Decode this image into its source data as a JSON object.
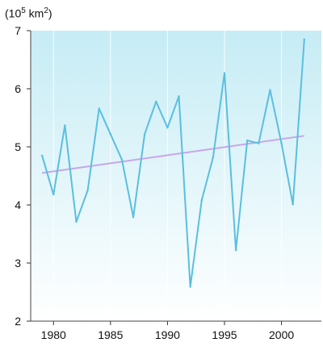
{
  "chart_data": {
    "type": "line",
    "title": "",
    "ylabel_parts": {
      "prefix": "(10",
      "exp": "5",
      "unit": " km",
      "unit_exp": "2",
      "suffix": ")"
    },
    "xlabel": "",
    "x": [
      1979,
      1980,
      1981,
      1982,
      1983,
      1984,
      1985,
      1986,
      1987,
      1988,
      1989,
      1990,
      1991,
      1992,
      1993,
      1994,
      1995,
      1996,
      1997,
      1998,
      1999,
      2000,
      2001,
      2002
    ],
    "series": [
      {
        "values": [
          4.85,
          4.18,
          5.37,
          3.71,
          4.25,
          5.66,
          5.22,
          4.78,
          3.79,
          5.22,
          5.78,
          5.33,
          5.87,
          2.59,
          4.08,
          4.82,
          6.27,
          3.22,
          5.11,
          5.06,
          5.98,
          5.06,
          4.01,
          6.85
        ],
        "color": "#59bfe0"
      }
    ],
    "trend": {
      "x": [
        1979,
        2002
      ],
      "y": [
        4.55,
        5.19
      ],
      "color": "#c7a6ea"
    },
    "xlim": [
      1978,
      2003.5
    ],
    "ylim": [
      2,
      7
    ],
    "xticks": [
      1980,
      1985,
      1990,
      1995,
      2000
    ],
    "yticks": [
      2,
      3,
      4,
      5,
      6,
      7
    ],
    "grid": "vertical",
    "background_gradient": [
      "#c6ecf5",
      "#ffffff"
    ]
  }
}
